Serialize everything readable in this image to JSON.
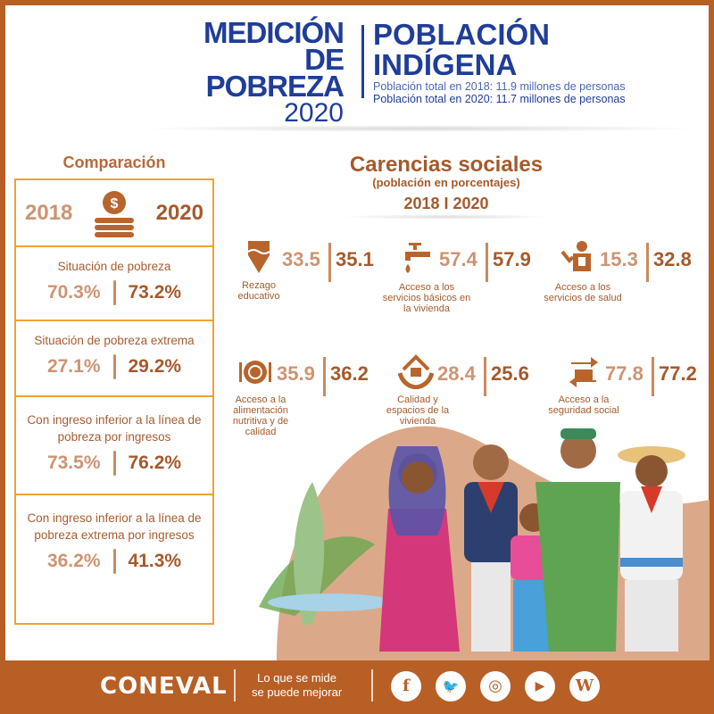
{
  "header": {
    "brand_line1": "MEDICIÓN",
    "brand_line2": "DE POBREZA",
    "brand_year": "2020",
    "title_line1": "POBLACIÓN",
    "title_line2": "INDÍGENA",
    "pop_2018": "Población total en 2018: 11.9 millones de personas",
    "pop_2020": "Población total en 2020: 11.7 millones de personas"
  },
  "comparison": {
    "title": "Comparación",
    "year_a": "2018",
    "year_b": "2020",
    "icon": "coin-stack-icon",
    "rows": [
      {
        "label": "Situación de pobreza",
        "v2018": "70.3%",
        "v2020": "73.2%"
      },
      {
        "label": "Situación de pobreza extrema",
        "v2018": "27.1%",
        "v2020": "29.2%"
      },
      {
        "label": "Con ingreso  inferior a la línea de pobreza  por ingresos",
        "v2018": "73.5%",
        "v2020": "76.2%"
      },
      {
        "label": "Con ingreso inferior a la línea de pobreza extrema por ingresos",
        "v2018": "36.2%",
        "v2020": "41.3%"
      }
    ]
  },
  "carencias": {
    "title": "Carencias sociales",
    "subtitle": "(población en porcentajes)",
    "years": "2018 I 2020",
    "items": [
      {
        "label": "Rezago educativo",
        "v2018": "33.5",
        "v2020": "35.1",
        "icon": "pencil-icon"
      },
      {
        "label": "Acceso a los servicios básicos en la vivienda",
        "v2018": "57.4",
        "v2020": "57.9",
        "icon": "faucet-icon"
      },
      {
        "label": "Acceso a los servicios de salud",
        "v2018": "15.3",
        "v2020": "32.8",
        "icon": "doctor-icon"
      },
      {
        "label": "Acceso a la alimentación nutritiva y de calidad",
        "v2018": "35.9",
        "v2020": "36.2",
        "icon": "plate-icon"
      },
      {
        "label": "Calidad y espacios de la vivienda",
        "v2018": "28.4",
        "v2020": "25.6",
        "icon": "house-hands-icon"
      },
      {
        "label": "Acceso a la seguridad social",
        "v2018": "77.8",
        "v2020": "77.2",
        "icon": "social-security-icon"
      }
    ]
  },
  "footer": {
    "logo": "CONEVAL",
    "slogan_line1": "Lo que se mide",
    "slogan_line2": "se puede mejorar",
    "social": [
      {
        "icon": "facebook-icon",
        "glyph": "f"
      },
      {
        "icon": "twitter-icon",
        "glyph": "🐦"
      },
      {
        "icon": "instagram-icon",
        "glyph": "◎"
      },
      {
        "icon": "youtube-icon",
        "glyph": "▶"
      },
      {
        "icon": "wordpress-icon",
        "glyph": "W"
      }
    ]
  },
  "colors": {
    "brand_blue": "#1f3d99",
    "accent_brown": "#b85f26",
    "border_orange": "#f0a035"
  }
}
